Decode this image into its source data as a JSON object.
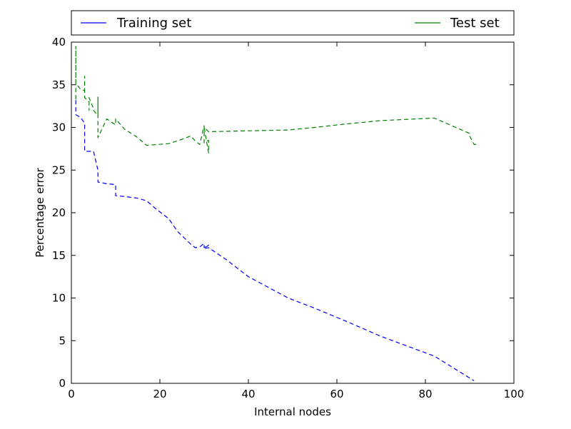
{
  "chart_data": {
    "type": "line",
    "xlabel": "Internal nodes",
    "ylabel": "Percentage error",
    "xlim": [
      0,
      100
    ],
    "ylim": [
      0,
      40
    ],
    "x_ticks": [
      "0",
      "20",
      "40",
      "60",
      "80",
      "100"
    ],
    "y_ticks": [
      "0",
      "5",
      "10",
      "15",
      "20",
      "25",
      "30",
      "35",
      "40"
    ],
    "grid": false,
    "legend_position": "top",
    "series": [
      {
        "name": "Training set",
        "color": "#0000ff",
        "x": [
          1,
          1,
          1,
          2,
          3,
          3,
          3,
          4,
          5,
          5,
          6,
          6,
          6,
          8,
          10,
          10,
          12,
          15,
          17,
          19,
          22,
          24,
          27,
          28,
          29,
          30,
          30,
          31,
          30,
          31,
          35,
          40,
          49,
          55,
          62,
          70,
          82,
          91
        ],
        "y": [
          33.2,
          32.5,
          31.5,
          31.2,
          30.5,
          29.0,
          27.2,
          27.2,
          27.2,
          27.2,
          25.0,
          24.6,
          23.6,
          23.4,
          23.3,
          22.0,
          21.9,
          21.7,
          21.4,
          20.5,
          19.3,
          17.8,
          16.3,
          15.9,
          16.0,
          16.4,
          15.9,
          16.2,
          15.8,
          15.9,
          14.5,
          12.5,
          10.0,
          8.8,
          7.3,
          5.5,
          3.2,
          0.3
        ]
      },
      {
        "name": "Test set",
        "color": "#008000",
        "x": [
          1,
          1,
          1,
          1,
          2,
          3,
          3,
          3,
          4,
          4,
          4,
          5,
          5,
          6,
          6,
          6,
          8,
          10,
          10,
          12,
          15,
          17,
          22,
          25,
          27,
          28,
          29,
          30,
          30,
          31,
          31,
          30,
          31,
          40,
          49,
          55,
          62,
          70,
          82,
          90,
          90,
          91,
          92
        ],
        "y": [
          33.3,
          39.5,
          36.0,
          35.2,
          34.5,
          34.3,
          36.0,
          33.5,
          33.0,
          32.0,
          33.5,
          32.2,
          32.0,
          31.4,
          33.6,
          28.8,
          31.0,
          30.3,
          31.0,
          29.8,
          28.8,
          27.9,
          28.1,
          28.6,
          29.0,
          28.4,
          28.0,
          30.2,
          28.2,
          28.5,
          27.0,
          30.0,
          29.5,
          29.6,
          29.7,
          30.0,
          30.4,
          30.8,
          31.1,
          29.3,
          29.0,
          28.0,
          28.0
        ]
      }
    ]
  }
}
